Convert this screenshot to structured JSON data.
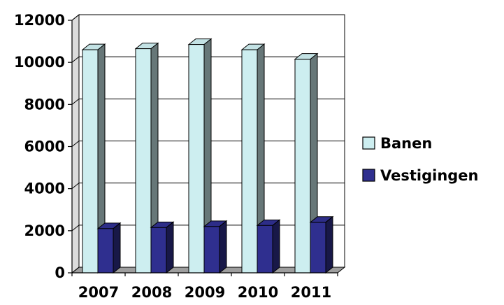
{
  "chart_data": {
    "type": "bar",
    "categories": [
      "2007",
      "2008",
      "2009",
      "2010",
      "2011"
    ],
    "series": [
      {
        "name": "Banen",
        "values": [
          10600,
          10650,
          10850,
          10600,
          10150
        ],
        "color": "#cdeef0"
      },
      {
        "name": "Vestigingen",
        "values": [
          2100,
          2150,
          2200,
          2250,
          2400
        ],
        "color": "#2f2f8f"
      }
    ],
    "y_ticks": [
      "0",
      "2000",
      "4000",
      "6000",
      "8000",
      "10000",
      "12000"
    ],
    "ylim": [
      0,
      12000
    ],
    "grid": true,
    "legend": {
      "placement": "right",
      "items": [
        "Banen",
        "Vestigingen"
      ]
    },
    "style": "3d-bar",
    "title": "",
    "xlabel": "",
    "ylabel": ""
  }
}
